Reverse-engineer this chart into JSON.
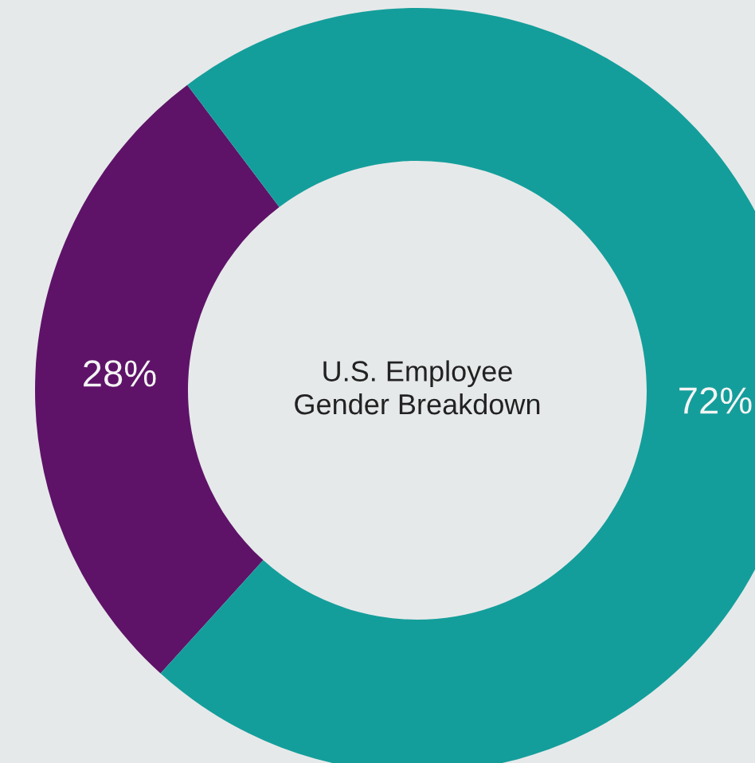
{
  "chart_data": {
    "type": "donut",
    "title": "U.S. Employee\nGender Breakdown",
    "categories": [
      null,
      null
    ],
    "values": [
      28,
      72
    ],
    "colors": [
      "#5e1368",
      "#149e9b"
    ],
    "value_labels": [
      "28%",
      "72%"
    ]
  }
}
